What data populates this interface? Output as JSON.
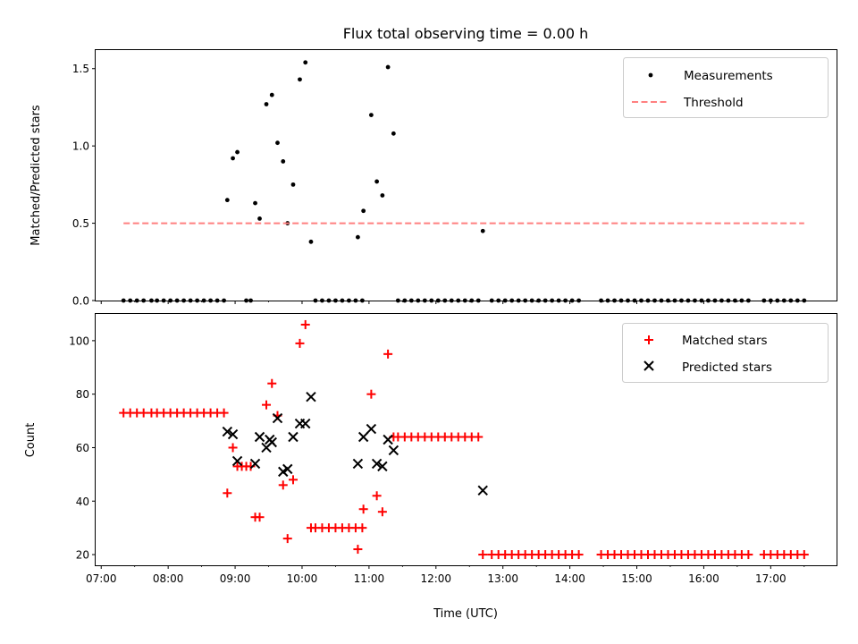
{
  "chart_data": [
    {
      "type": "scatter",
      "title": "Flux total observing time = 0.00 h",
      "xlabel": "",
      "ylabel": "Matched/Predicted stars",
      "xlim": [
        "06:55",
        "17:59"
      ],
      "ylim": [
        0,
        1.62
      ],
      "yticks": [
        0.0,
        0.5,
        1.0,
        1.5
      ],
      "grid": false,
      "legend": "top-right",
      "colors": {
        "measurements": "#000000",
        "threshold": "#ff8080"
      },
      "series": [
        {
          "name": "Measurements",
          "marker": "dot",
          "points": [
            [
              "07:20",
              0
            ],
            [
              "07:26",
              0
            ],
            [
              "07:32",
              0
            ],
            [
              "07:38",
              0
            ],
            [
              "07:45",
              0
            ],
            [
              "07:50",
              0
            ],
            [
              "07:56",
              0
            ],
            [
              "08:02",
              0
            ],
            [
              "08:08",
              0
            ],
            [
              "08:14",
              0
            ],
            [
              "08:20",
              0
            ],
            [
              "08:26",
              0
            ],
            [
              "08:32",
              0
            ],
            [
              "08:38",
              0
            ],
            [
              "08:44",
              0
            ],
            [
              "08:50",
              0
            ],
            [
              "09:10",
              0
            ],
            [
              "09:14",
              0
            ],
            [
              "10:12",
              0
            ],
            [
              "10:18",
              0
            ],
            [
              "10:24",
              0
            ],
            [
              "10:30",
              0
            ],
            [
              "10:36",
              0
            ],
            [
              "10:42",
              0
            ],
            [
              "10:48",
              0
            ],
            [
              "10:54",
              0
            ],
            [
              "11:26",
              0
            ],
            [
              "11:32",
              0
            ],
            [
              "11:38",
              0
            ],
            [
              "11:44",
              0
            ],
            [
              "11:50",
              0
            ],
            [
              "11:56",
              0
            ],
            [
              "12:02",
              0
            ],
            [
              "12:08",
              0
            ],
            [
              "12:14",
              0
            ],
            [
              "12:20",
              0
            ],
            [
              "12:26",
              0
            ],
            [
              "12:32",
              0
            ],
            [
              "12:38",
              0
            ],
            [
              "12:50",
              0
            ],
            [
              "12:56",
              0
            ],
            [
              "13:02",
              0
            ],
            [
              "13:08",
              0
            ],
            [
              "13:14",
              0
            ],
            [
              "13:20",
              0
            ],
            [
              "13:26",
              0
            ],
            [
              "13:32",
              0
            ],
            [
              "13:38",
              0
            ],
            [
              "13:44",
              0
            ],
            [
              "13:50",
              0
            ],
            [
              "13:56",
              0
            ],
            [
              "14:02",
              0
            ],
            [
              "14:08",
              0
            ],
            [
              "14:28",
              0
            ],
            [
              "14:34",
              0
            ],
            [
              "14:40",
              0
            ],
            [
              "14:46",
              0
            ],
            [
              "14:52",
              0
            ],
            [
              "14:58",
              0
            ],
            [
              "15:04",
              0
            ],
            [
              "15:10",
              0
            ],
            [
              "15:16",
              0
            ],
            [
              "15:22",
              0
            ],
            [
              "15:28",
              0
            ],
            [
              "15:34",
              0
            ],
            [
              "15:40",
              0
            ],
            [
              "15:46",
              0
            ],
            [
              "15:52",
              0
            ],
            [
              "15:58",
              0
            ],
            [
              "16:04",
              0
            ],
            [
              "16:10",
              0
            ],
            [
              "16:16",
              0
            ],
            [
              "16:22",
              0
            ],
            [
              "16:28",
              0
            ],
            [
              "16:34",
              0
            ],
            [
              "16:40",
              0
            ],
            [
              "16:54",
              0
            ],
            [
              "17:00",
              0
            ],
            [
              "17:06",
              0
            ],
            [
              "17:12",
              0
            ],
            [
              "17:18",
              0
            ],
            [
              "17:24",
              0
            ],
            [
              "17:30",
              0
            ],
            [
              "08:53",
              0.65
            ],
            [
              "08:58",
              0.92
            ],
            [
              "09:02",
              0.96
            ],
            [
              "09:18",
              0.63
            ],
            [
              "09:22",
              0.53
            ],
            [
              "09:28",
              1.27
            ],
            [
              "09:33",
              1.33
            ],
            [
              "09:38",
              1.02
            ],
            [
              "09:43",
              0.9
            ],
            [
              "09:47",
              0.5
            ],
            [
              "09:52",
              0.75
            ],
            [
              "09:58",
              1.43
            ],
            [
              "10:03",
              1.54
            ],
            [
              "10:08",
              0.38
            ],
            [
              "10:50",
              0.41
            ],
            [
              "10:55",
              0.58
            ],
            [
              "11:02",
              1.2
            ],
            [
              "11:07",
              0.77
            ],
            [
              "11:12",
              0.68
            ],
            [
              "11:17",
              1.51
            ],
            [
              "11:22",
              1.08
            ],
            [
              "12:42",
              0.45
            ]
          ]
        },
        {
          "name": "Threshold",
          "marker": "dashed-line",
          "points": [
            [
              "07:20",
              0.5
            ],
            [
              "17:30",
              0.5
            ]
          ]
        }
      ]
    },
    {
      "type": "scatter",
      "title": "",
      "xlabel": "Time (UTC)",
      "ylabel": "Count",
      "xlim": [
        "06:55",
        "17:59"
      ],
      "ylim": [
        16,
        110
      ],
      "yticks": [
        20,
        40,
        60,
        80,
        100
      ],
      "xticks": [
        "07:00",
        "08:00",
        "09:00",
        "10:00",
        "11:00",
        "12:00",
        "13:00",
        "14:00",
        "15:00",
        "16:00",
        "17:00"
      ],
      "grid": false,
      "legend": "top-right",
      "colors": {
        "matched": "#ff0000",
        "predicted": "#000000"
      },
      "series": [
        {
          "name": "Matched stars",
          "marker": "plus",
          "points": [
            [
              "07:20",
              73
            ],
            [
              "07:26",
              73
            ],
            [
              "07:32",
              73
            ],
            [
              "07:38",
              73
            ],
            [
              "07:45",
              73
            ],
            [
              "07:50",
              73
            ],
            [
              "07:56",
              73
            ],
            [
              "08:02",
              73
            ],
            [
              "08:08",
              73
            ],
            [
              "08:14",
              73
            ],
            [
              "08:20",
              73
            ],
            [
              "08:26",
              73
            ],
            [
              "08:32",
              73
            ],
            [
              "08:38",
              73
            ],
            [
              "08:44",
              73
            ],
            [
              "08:50",
              73
            ],
            [
              "08:53",
              43
            ],
            [
              "08:58",
              60
            ],
            [
              "09:02",
              53
            ],
            [
              "09:06",
              53
            ],
            [
              "09:10",
              53
            ],
            [
              "09:14",
              53
            ],
            [
              "09:18",
              34
            ],
            [
              "09:22",
              34
            ],
            [
              "09:28",
              76
            ],
            [
              "09:33",
              84
            ],
            [
              "09:38",
              72
            ],
            [
              "09:43",
              46
            ],
            [
              "09:47",
              26
            ],
            [
              "09:52",
              48
            ],
            [
              "09:58",
              99
            ],
            [
              "10:03",
              106
            ],
            [
              "10:08",
              30
            ],
            [
              "10:12",
              30
            ],
            [
              "10:18",
              30
            ],
            [
              "10:24",
              30
            ],
            [
              "10:30",
              30
            ],
            [
              "10:36",
              30
            ],
            [
              "10:42",
              30
            ],
            [
              "10:48",
              30
            ],
            [
              "10:54",
              30
            ],
            [
              "10:50",
              22
            ],
            [
              "10:55",
              37
            ],
            [
              "11:02",
              80
            ],
            [
              "11:07",
              42
            ],
            [
              "11:12",
              36
            ],
            [
              "11:17",
              95
            ],
            [
              "11:22",
              64
            ],
            [
              "11:26",
              64
            ],
            [
              "11:32",
              64
            ],
            [
              "11:38",
              64
            ],
            [
              "11:44",
              64
            ],
            [
              "11:50",
              64
            ],
            [
              "11:56",
              64
            ],
            [
              "12:02",
              64
            ],
            [
              "12:08",
              64
            ],
            [
              "12:14",
              64
            ],
            [
              "12:20",
              64
            ],
            [
              "12:26",
              64
            ],
            [
              "12:32",
              64
            ],
            [
              "12:38",
              64
            ],
            [
              "12:42",
              20
            ],
            [
              "12:50",
              20
            ],
            [
              "12:56",
              20
            ],
            [
              "13:02",
              20
            ],
            [
              "13:08",
              20
            ],
            [
              "13:14",
              20
            ],
            [
              "13:20",
              20
            ],
            [
              "13:26",
              20
            ],
            [
              "13:32",
              20
            ],
            [
              "13:38",
              20
            ],
            [
              "13:44",
              20
            ],
            [
              "13:50",
              20
            ],
            [
              "13:56",
              20
            ],
            [
              "14:02",
              20
            ],
            [
              "14:08",
              20
            ],
            [
              "14:28",
              20
            ],
            [
              "14:34",
              20
            ],
            [
              "14:40",
              20
            ],
            [
              "14:46",
              20
            ],
            [
              "14:52",
              20
            ],
            [
              "14:58",
              20
            ],
            [
              "15:04",
              20
            ],
            [
              "15:10",
              20
            ],
            [
              "15:16",
              20
            ],
            [
              "15:22",
              20
            ],
            [
              "15:28",
              20
            ],
            [
              "15:34",
              20
            ],
            [
              "15:40",
              20
            ],
            [
              "15:46",
              20
            ],
            [
              "15:52",
              20
            ],
            [
              "15:58",
              20
            ],
            [
              "16:04",
              20
            ],
            [
              "16:10",
              20
            ],
            [
              "16:16",
              20
            ],
            [
              "16:22",
              20
            ],
            [
              "16:28",
              20
            ],
            [
              "16:34",
              20
            ],
            [
              "16:40",
              20
            ],
            [
              "16:54",
              20
            ],
            [
              "17:00",
              20
            ],
            [
              "17:06",
              20
            ],
            [
              "17:12",
              20
            ],
            [
              "17:18",
              20
            ],
            [
              "17:24",
              20
            ],
            [
              "17:30",
              20
            ]
          ]
        },
        {
          "name": "Predicted stars",
          "marker": "x",
          "points": [
            [
              "08:53",
              66
            ],
            [
              "08:58",
              65
            ],
            [
              "09:02",
              55
            ],
            [
              "09:18",
              54
            ],
            [
              "09:22",
              64
            ],
            [
              "09:28",
              60
            ],
            [
              "09:31",
              63
            ],
            [
              "09:33",
              62
            ],
            [
              "09:38",
              71
            ],
            [
              "09:43",
              51
            ],
            [
              "09:47",
              52
            ],
            [
              "09:52",
              64
            ],
            [
              "09:58",
              69
            ],
            [
              "10:03",
              69
            ],
            [
              "10:08",
              79
            ],
            [
              "10:50",
              54
            ],
            [
              "10:55",
              64
            ],
            [
              "11:02",
              67
            ],
            [
              "11:07",
              54
            ],
            [
              "11:12",
              53
            ],
            [
              "11:17",
              63
            ],
            [
              "11:22",
              59
            ],
            [
              "12:42",
              44
            ]
          ]
        }
      ]
    }
  ]
}
